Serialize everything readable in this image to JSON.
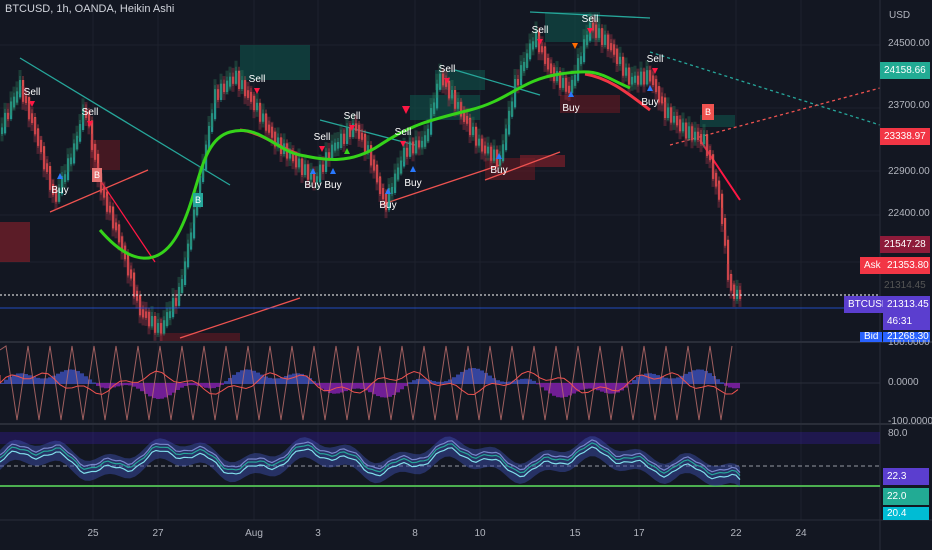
{
  "header": {
    "symbol_line": "BTCUSD, 1h, OANDA, Heikin Ashi"
  },
  "price_axis": {
    "currency": "USD",
    "labels": [
      "24500.00",
      "23700.00",
      "22900.00",
      "22400.00"
    ],
    "tags": {
      "high_green": "24158.66",
      "red_level": "23338.97",
      "dark_red": "21547.28",
      "ask_label": "Ask",
      "ask_value": "21353.80",
      "symbol_label": "BTCUSD",
      "price": "21313.45",
      "countdown": "46:31",
      "bid_label": "Bid",
      "bid_value": "21268.30",
      "dimmed_value": "21314.45"
    }
  },
  "osc1_axis": {
    "top": "100.0000",
    "mid": "0.0000",
    "bottom": "-100.0000"
  },
  "osc2_axis": {
    "top": "80.0",
    "tag1": "22.3",
    "tag2": "22.0",
    "tag3": "20.4"
  },
  "time_axis": [
    "25",
    "27",
    "Aug",
    "3",
    "8",
    "10",
    "15",
    "17",
    "22",
    "24"
  ],
  "signals": {
    "sell": "Sell",
    "buy": "Buy",
    "b": "B"
  },
  "colors": {
    "background": "#131722",
    "bull": "#26a69a",
    "bear": "#ef5350",
    "ma_up": "#4caf50",
    "ma_down": "#f23645",
    "purple": "#7b3ff2"
  }
}
